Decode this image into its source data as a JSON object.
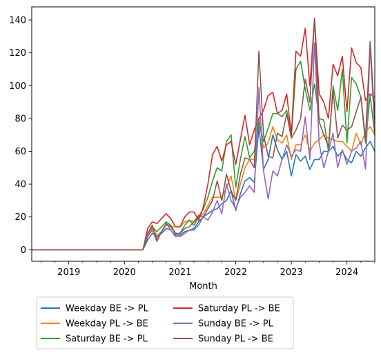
{
  "chart_data": {
    "type": "line",
    "title": "",
    "xlabel": "Month",
    "ylabel": "",
    "xlim": [
      "2018-05",
      "2024-07"
    ],
    "ylim": [
      -7,
      148
    ],
    "x_ticks": [
      {
        "label": "2019",
        "date": "2019-01"
      },
      {
        "label": "2020",
        "date": "2020-01"
      },
      {
        "label": "2021",
        "date": "2021-01"
      },
      {
        "label": "2022",
        "date": "2022-01"
      },
      {
        "label": "2023",
        "date": "2023-01"
      },
      {
        "label": "2024",
        "date": "2024-01"
      }
    ],
    "y_ticks": [
      0,
      20,
      40,
      60,
      80,
      100,
      120,
      140
    ],
    "grid": false,
    "legend_position": "below, outside plot, 2 columns",
    "x": [
      "2018-05",
      "2018-06",
      "2018-07",
      "2018-08",
      "2018-09",
      "2018-10",
      "2018-11",
      "2018-12",
      "2019-01",
      "2019-02",
      "2019-03",
      "2019-04",
      "2019-05",
      "2019-06",
      "2019-07",
      "2019-08",
      "2019-09",
      "2019-10",
      "2019-11",
      "2019-12",
      "2020-01",
      "2020-02",
      "2020-03",
      "2020-04",
      "2020-05",
      "2020-06",
      "2020-07",
      "2020-08",
      "2020-09",
      "2020-10",
      "2020-11",
      "2020-12",
      "2021-01",
      "2021-02",
      "2021-03",
      "2021-04",
      "2021-05",
      "2021-06",
      "2021-07",
      "2021-08",
      "2021-09",
      "2021-10",
      "2021-11",
      "2021-12",
      "2022-01",
      "2022-02",
      "2022-03",
      "2022-04",
      "2022-05",
      "2022-06",
      "2022-07",
      "2022-08",
      "2022-09",
      "2022-10",
      "2022-11",
      "2022-12",
      "2023-01",
      "2023-02",
      "2023-03",
      "2023-04",
      "2023-05",
      "2023-06",
      "2023-07",
      "2023-08",
      "2023-09",
      "2023-10",
      "2023-11",
      "2023-12",
      "2024-01",
      "2024-02",
      "2024-03",
      "2024-04",
      "2024-05",
      "2024-06",
      "2024-07"
    ],
    "series": [
      {
        "name": "Weekday BE -> PL",
        "color": "#1f77b4",
        "values": [
          0,
          0,
          0,
          0,
          0,
          0,
          0,
          0,
          0,
          0,
          0,
          0,
          0,
          0,
          0,
          0,
          0,
          0,
          0,
          0,
          0,
          0,
          0,
          0,
          0,
          6,
          10,
          8,
          10,
          13,
          12,
          9,
          9,
          11,
          12,
          13,
          17,
          20,
          22,
          24,
          25,
          28,
          30,
          36,
          24,
          34,
          42,
          44,
          41,
          75,
          49,
          55,
          70,
          61,
          55,
          60,
          45,
          58,
          54,
          57,
          49,
          55,
          55,
          60,
          60,
          63,
          57,
          60,
          55,
          53,
          60,
          57,
          62,
          66,
          60
        ]
      },
      {
        "name": "Weekday PL -> BE",
        "color": "#ff7f0e",
        "values": [
          0,
          0,
          0,
          0,
          0,
          0,
          0,
          0,
          0,
          0,
          0,
          0,
          0,
          0,
          0,
          0,
          0,
          0,
          0,
          0,
          0,
          0,
          0,
          0,
          0,
          9,
          13,
          9,
          11,
          15,
          14,
          14,
          14,
          17,
          18,
          17,
          19,
          22,
          27,
          32,
          32,
          32,
          38,
          45,
          30,
          40,
          50,
          55,
          55,
          80,
          62,
          65,
          75,
          67,
          65,
          70,
          55,
          64,
          64,
          70,
          60,
          65,
          67,
          70,
          68,
          67,
          66,
          66,
          63,
          60,
          71,
          64,
          72,
          75,
          70
        ]
      },
      {
        "name": "Saturday BE -> PL",
        "color": "#2ca02c",
        "values": [
          0,
          0,
          0,
          0,
          0,
          0,
          0,
          0,
          0,
          0,
          0,
          0,
          0,
          0,
          0,
          0,
          0,
          0,
          0,
          0,
          0,
          0,
          0,
          0,
          0,
          10,
          14,
          11,
          14,
          17,
          15,
          10,
          10,
          15,
          18,
          15,
          20,
          25,
          32,
          42,
          50,
          48,
          66,
          70,
          38,
          55,
          69,
          56,
          60,
          78,
          66,
          74,
          83,
          83,
          81,
          85,
          69,
          110,
          115,
          98,
          85,
          101,
          80,
          79,
          60,
          100,
          85,
          110,
          65,
          105,
          101,
          93,
          65,
          94,
          70
        ]
      },
      {
        "name": "Saturday PL -> BE",
        "color": "#d62728",
        "values": [
          0,
          0,
          0,
          0,
          0,
          0,
          0,
          0,
          0,
          0,
          0,
          0,
          0,
          0,
          0,
          0,
          0,
          0,
          0,
          0,
          0,
          0,
          0,
          0,
          0,
          13,
          17,
          16,
          19,
          22,
          19,
          14,
          14,
          20,
          23,
          23,
          18,
          26,
          40,
          58,
          63,
          54,
          64,
          66,
          52,
          67,
          82,
          64,
          73,
          80,
          85,
          94,
          96,
          83,
          85,
          95,
          70,
          121,
          118,
          135,
          100,
          141,
          95,
          90,
          80,
          113,
          106,
          118,
          84,
          123,
          114,
          111,
          91,
          95,
          93
        ]
      },
      {
        "name": "Sunday BE -> PL",
        "color": "#9467bd",
        "values": [
          0,
          0,
          0,
          0,
          0,
          0,
          0,
          0,
          0,
          0,
          0,
          0,
          0,
          0,
          0,
          0,
          0,
          0,
          0,
          0,
          0,
          0,
          0,
          0,
          0,
          8,
          12,
          5,
          11,
          16,
          12,
          8,
          8,
          10,
          12,
          12,
          15,
          20,
          18,
          23,
          30,
          22,
          40,
          30,
          25,
          32,
          35,
          39,
          35,
          99,
          48,
          31,
          48,
          45,
          55,
          64,
          57,
          61,
          60,
          81,
          55,
          126,
          65,
          50,
          60,
          71,
          50,
          61,
          52,
          60,
          62,
          66,
          49,
          124,
          72
        ]
      },
      {
        "name": "Sunday PL -> BE",
        "color": "#8c564b",
        "values": [
          0,
          0,
          0,
          0,
          0,
          0,
          0,
          0,
          0,
          0,
          0,
          0,
          0,
          0,
          0,
          0,
          0,
          0,
          0,
          0,
          0,
          0,
          0,
          0,
          0,
          10,
          15,
          6,
          11,
          16,
          14,
          10,
          10,
          13,
          14,
          17,
          21,
          20,
          25,
          30,
          42,
          30,
          46,
          36,
          30,
          46,
          56,
          55,
          50,
          121,
          70,
          57,
          56,
          71,
          69,
          83,
          68,
          73,
          80,
          104,
          90,
          141,
          78,
          70,
          63,
          97,
          68,
          76,
          73,
          75,
          84,
          93,
          68,
          127,
          80
        ]
      }
    ]
  }
}
